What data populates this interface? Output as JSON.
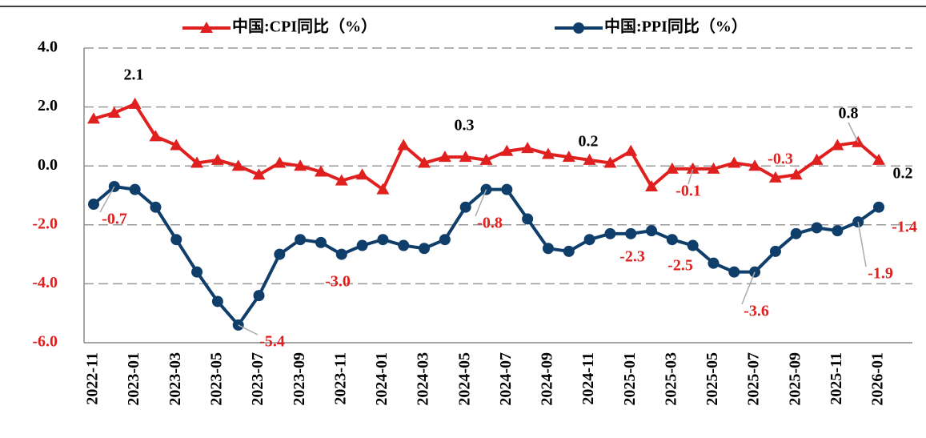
{
  "chart_data": {
    "type": "line",
    "categories": [
      "2022-11",
      null,
      "2023-01",
      null,
      "2023-03",
      null,
      "2023-05",
      null,
      "2023-07",
      null,
      "2023-09",
      null,
      "2023-11",
      null,
      "2024-01",
      null,
      "2024-03",
      null,
      "2024-05",
      null,
      "2024-07",
      null,
      "2024-09",
      null,
      "2024-11",
      null,
      "2025-01",
      null,
      "2025-03",
      null,
      "2025-05",
      null,
      "2025-07",
      null,
      "2025-09",
      null,
      "2025-11",
      null,
      "2026-01"
    ],
    "series": [
      {
        "name": "中国:CPI同比（%）",
        "color": "#e0201e",
        "marker": "triangle",
        "values": [
          1.6,
          1.8,
          2.1,
          1.0,
          0.7,
          0.1,
          0.2,
          0.0,
          -0.3,
          0.1,
          0.0,
          -0.2,
          -0.5,
          -0.3,
          -0.8,
          0.7,
          0.1,
          0.3,
          0.3,
          0.2,
          0.5,
          0.6,
          0.4,
          0.3,
          0.2,
          0.1,
          0.5,
          -0.7,
          -0.1,
          -0.1,
          -0.1,
          0.1,
          0.0,
          -0.4,
          -0.3,
          0.2,
          0.7,
          0.8,
          0.2
        ],
        "value_labels": [
          null,
          null,
          "2.1",
          null,
          null,
          null,
          null,
          null,
          null,
          null,
          null,
          null,
          null,
          null,
          null,
          null,
          null,
          null,
          "0.3",
          null,
          null,
          null,
          null,
          null,
          "0.2",
          null,
          null,
          null,
          null,
          "-0.1",
          null,
          null,
          null,
          null,
          "-0.3",
          null,
          null,
          "0.8",
          "0.2"
        ]
      },
      {
        "name": "中国:PPI同比（%）",
        "color": "#0f3e6b",
        "marker": "circle",
        "values": [
          -1.3,
          -0.7,
          -0.8,
          -1.4,
          -2.5,
          -3.6,
          -4.6,
          -5.4,
          -4.4,
          -3.0,
          -2.5,
          -2.6,
          -3.0,
          -2.7,
          -2.5,
          -2.7,
          -2.8,
          -2.5,
          -1.4,
          -0.8,
          -0.8,
          -1.8,
          -2.8,
          -2.9,
          -2.5,
          -2.3,
          -2.3,
          -2.2,
          -2.5,
          -2.7,
          -3.3,
          -3.6,
          -3.6,
          -2.9,
          -2.3,
          -2.1,
          -2.2,
          -1.9,
          -1.4
        ],
        "value_labels": [
          null,
          "-0.7",
          null,
          null,
          null,
          null,
          null,
          "-5.4",
          null,
          null,
          null,
          null,
          "-3.0",
          null,
          null,
          null,
          null,
          null,
          null,
          "-0.8",
          null,
          null,
          null,
          null,
          null,
          null,
          "-2.3",
          null,
          "-2.5",
          null,
          null,
          null,
          "-3.6",
          null,
          null,
          null,
          null,
          "-1.9",
          "-1.4"
        ]
      }
    ],
    "ylim": [
      -6,
      4
    ],
    "yticks": [
      {
        "value": -6,
        "label": "-6.0"
      },
      {
        "value": -4,
        "label": "-4.0"
      },
      {
        "value": -2,
        "label": "-2.0"
      },
      {
        "value": 0,
        "label": "0.0"
      },
      {
        "value": 2,
        "label": "2.0"
      },
      {
        "value": 4,
        "label": "4.0"
      }
    ],
    "grid": true,
    "legend": "top"
  }
}
